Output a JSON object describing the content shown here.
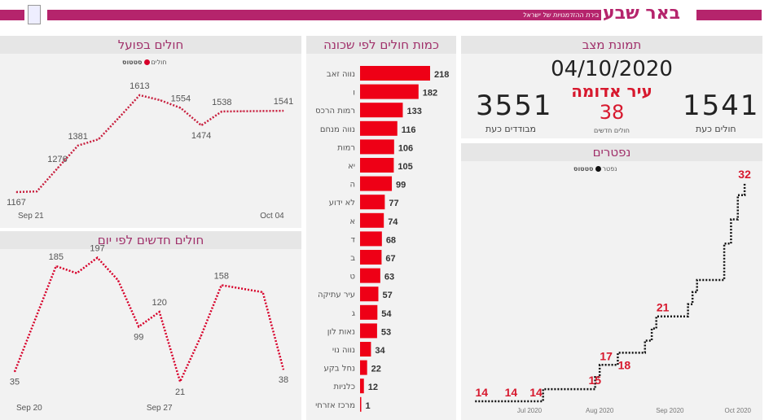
{
  "header": {
    "brand": "באר שבע",
    "tagline": "בירת ההזדמנויות של ישראל",
    "accent": "#b5246c"
  },
  "active": {
    "title": "חולים בפועל",
    "legend_status": "סטטוס",
    "legend_item": "חולים",
    "color": "#d7002a",
    "chart_data": {
      "type": "line",
      "x": [
        "Sep 21",
        "Sep 22",
        "Sep 23",
        "Sep 24",
        "Sep 25",
        "Sep 26",
        "Sep 27",
        "Sep 28",
        "Sep 29",
        "Sep 30",
        "Oct 01",
        "Oct 02",
        "Oct 03",
        "Oct 04"
      ],
      "values": [
        1167,
        1170,
        1276,
        1381,
        1410,
        1510,
        1613,
        1590,
        1554,
        1474,
        1538,
        1539,
        1540,
        1541
      ],
      "labeled": [
        0,
        2,
        3,
        6,
        8,
        9,
        10,
        13
      ],
      "xticks": [
        "Sep 21",
        "Oct 04"
      ]
    }
  },
  "new_cases": {
    "title": "חולים חדשים לפי יום",
    "chart_data": {
      "type": "line",
      "x": [
        "Sep 20",
        "Sep 21",
        "Sep 22",
        "Sep 23",
        "Sep 24",
        "Sep 25",
        "Sep 26",
        "Sep 27",
        "Sep 28",
        "Sep 29",
        "Sep 30",
        "Oct 01",
        "Oct 02",
        "Oct 03"
      ],
      "values": [
        35,
        110,
        185,
        175,
        197,
        165,
        99,
        120,
        21,
        85,
        158,
        153,
        148,
        38
      ],
      "labeled": [
        0,
        2,
        4,
        6,
        7,
        8,
        10,
        13
      ],
      "xticks": [
        "Sep 20",
        "Sep 27"
      ]
    }
  },
  "neighborhoods": {
    "title": "כמות חולים לפי שכונה",
    "color": "#ee0016",
    "chart_data": {
      "type": "bar",
      "categories": [
        "נווה זאב",
        "ו",
        "רמות הרכס",
        "נווה מנחם",
        "רמות",
        "יא",
        "ה",
        "לא ידוע",
        "א",
        "ד",
        "ב",
        "ט",
        "עיר עתיקה",
        "ג",
        "נאות לון",
        "נווה נוי",
        "נחל בקע",
        "כלניות",
        "מרכז אזרחי"
      ],
      "values": [
        218,
        182,
        133,
        116,
        106,
        105,
        99,
        77,
        74,
        68,
        67,
        63,
        57,
        54,
        53,
        34,
        22,
        12,
        1
      ]
    }
  },
  "status": {
    "title": "תמונת מצב",
    "date": "04/10/2020",
    "city_status": "עיר אדומה",
    "new_cases": "38",
    "new_cases_label": "חולים חדשים",
    "isolated": "3551",
    "isolated_label": "מבודדים כעת",
    "active": "1541",
    "active_label": "חולים כעת",
    "red": "#d7192e"
  },
  "deaths": {
    "title": "נפטרים",
    "legend_status": "סטטוס",
    "legend_item": "נפטר",
    "chart_data": {
      "type": "line",
      "step": true,
      "x": [
        "2020-06-07",
        "2020-06-20",
        "2020-07-01",
        "2020-07-07",
        "2020-07-27",
        "2020-07-30",
        "2020-08-01",
        "2020-08-07",
        "2020-08-09",
        "2020-08-19",
        "2020-08-21",
        "2020-08-24",
        "2020-08-26",
        "2020-09-07",
        "2020-09-09",
        "2020-09-11",
        "2020-09-13",
        "2020-09-22",
        "2020-09-25",
        "2020-09-28",
        "2020-10-01",
        "2020-10-04"
      ],
      "values": [
        14,
        14,
        14,
        15,
        15,
        16,
        17,
        17,
        18,
        18,
        19,
        20,
        21,
        21,
        22,
        23,
        24,
        24,
        27,
        29,
        31,
        32
      ],
      "labels": [
        {
          "i": 0,
          "v": "14"
        },
        {
          "i": 1,
          "v": "14"
        },
        {
          "i": 2,
          "v": "14"
        },
        {
          "i": 4,
          "v": "15"
        },
        {
          "i": 6,
          "v": "17"
        },
        {
          "i": 8,
          "v": "18"
        },
        {
          "i": 12,
          "v": "21"
        },
        {
          "i": 21,
          "v": "32"
        }
      ],
      "xticks": [
        "Jul 2020",
        "Aug 2020",
        "Sep 2020",
        "Oct 2020"
      ],
      "label_color": "#d7192e"
    }
  }
}
